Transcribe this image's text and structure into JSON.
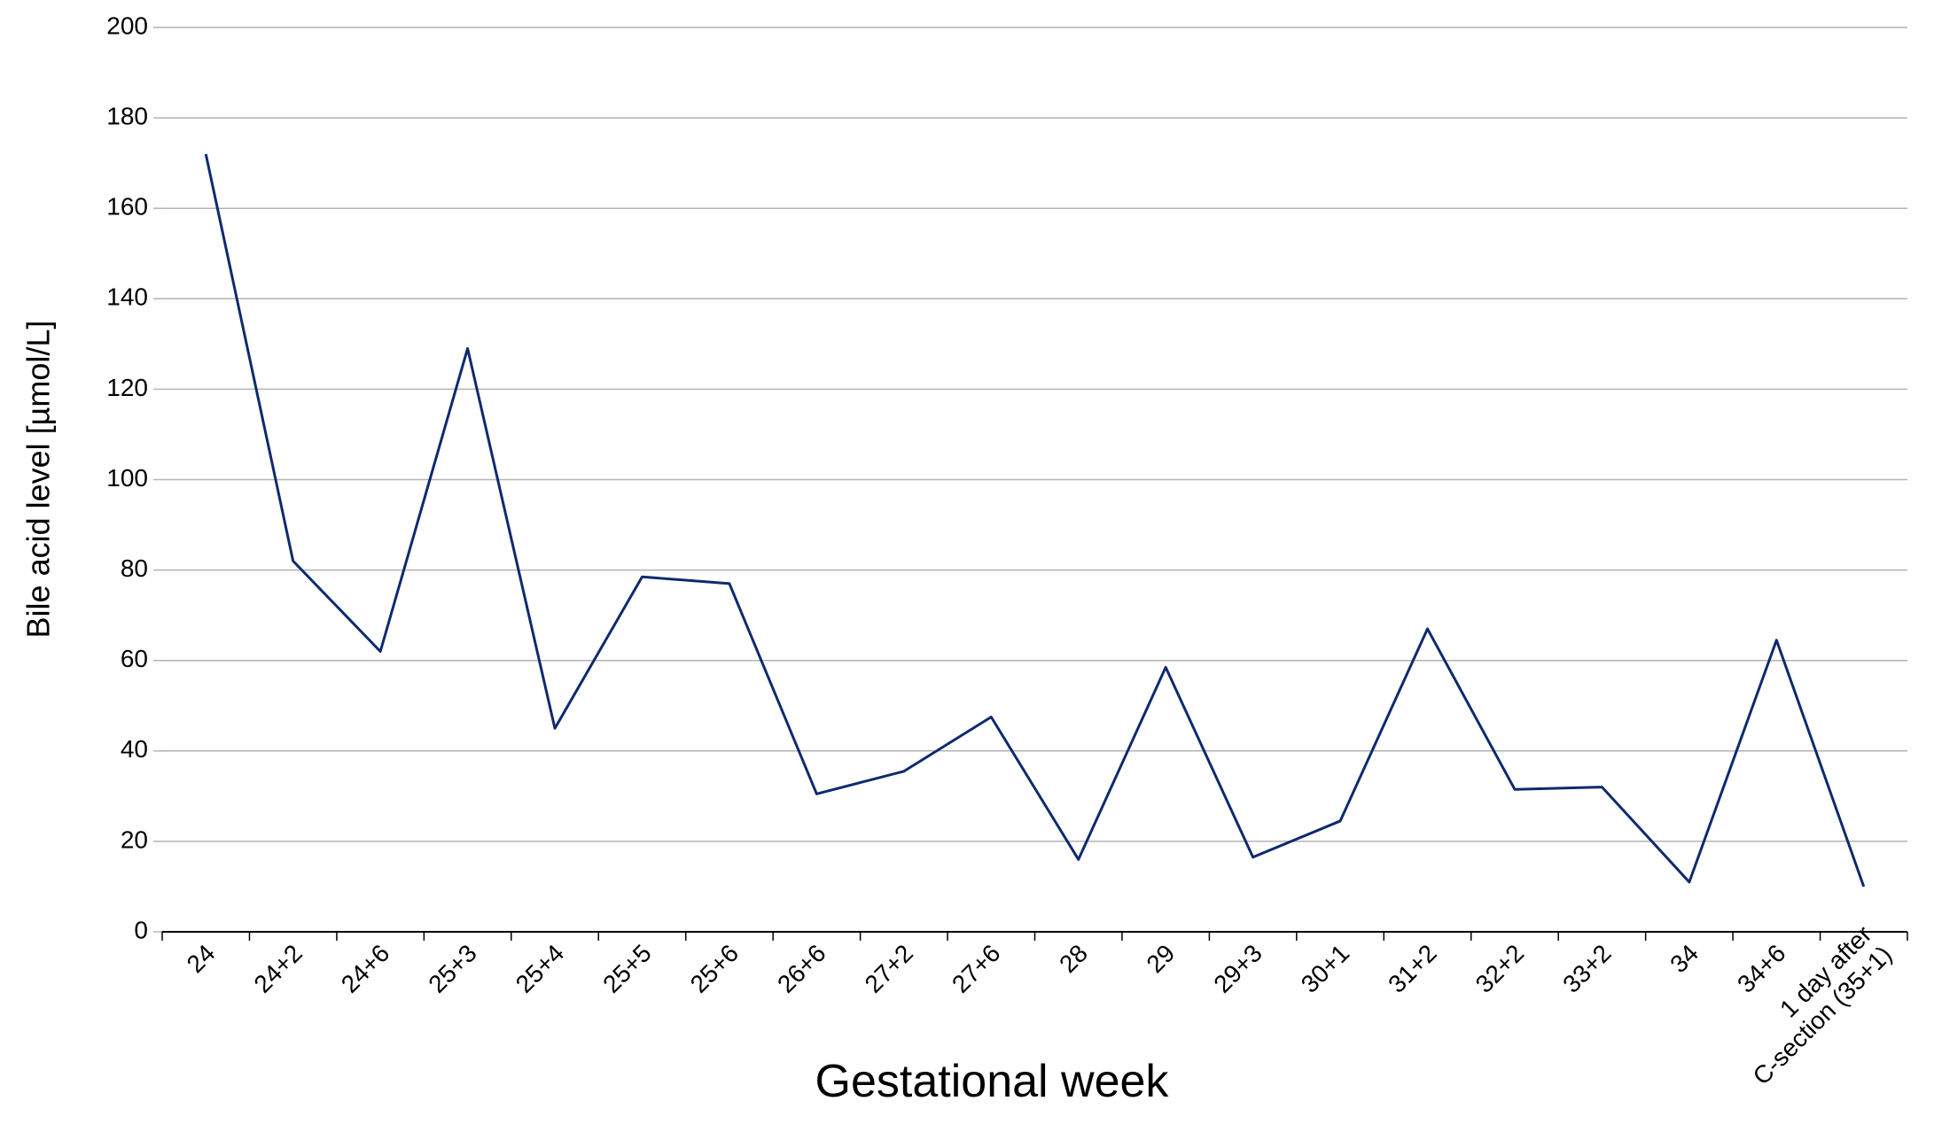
{
  "chart_data": {
    "type": "line",
    "x_label": "Gestational week",
    "y_label": "Bile acid level [µmol/L]",
    "categories": [
      "24",
      "24+2",
      "24+6",
      "25+3",
      "25+4",
      "25+5",
      "25+6",
      "26+6",
      "27+2",
      "27+6",
      "28",
      "29",
      "29+3",
      "30+1",
      "31+2",
      "32+2",
      "33+2",
      "34",
      "34+6",
      "1 day after\nC-section (35+1)"
    ],
    "values": [
      172,
      82,
      62,
      129,
      45,
      78.5,
      77,
      30.5,
      35.5,
      47.5,
      16,
      58.5,
      16.5,
      24.5,
      67,
      31.5,
      32,
      11,
      64.5,
      10
    ],
    "color": "#0d2a6e",
    "ylim": [
      0,
      200
    ],
    "yticks": [
      0,
      20,
      40,
      60,
      80,
      100,
      120,
      140,
      160,
      180,
      200
    ],
    "grid": true
  }
}
